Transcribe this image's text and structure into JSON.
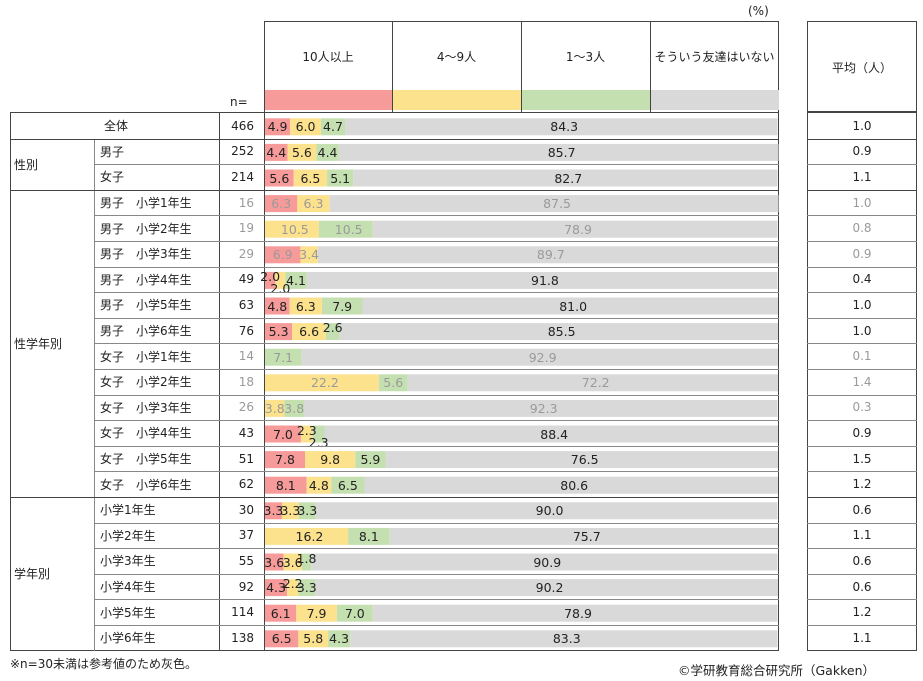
{
  "unit_label": "(%)",
  "n_label": "n=",
  "avg_header": "平均（人）",
  "legend": [
    {
      "label": "10人以上",
      "color": "#f79a9a"
    },
    {
      "label": "4～9人",
      "color": "#fde28e"
    },
    {
      "label": "1～3人",
      "color": "#c5e0b0"
    },
    {
      "label": "そういう友達はいない",
      "color": "#d9d9d9"
    }
  ],
  "groups": [
    {
      "label": "",
      "rows": [
        0
      ]
    },
    {
      "label": "性別",
      "rows": [
        1,
        2
      ]
    },
    {
      "label": "性学年別",
      "rows": [
        3,
        4,
        5,
        6,
        7,
        8,
        9,
        10,
        11,
        12,
        13,
        14
      ]
    },
    {
      "label": "学年別",
      "rows": [
        15,
        16,
        17,
        18,
        19,
        20
      ]
    }
  ],
  "footnote": "※n=30未満は参考値のため灰色。",
  "credit": "©学研教育総合研究所（Gakken）",
  "chart_data": {
    "type": "bar",
    "stacked": true,
    "horizontal": true,
    "xlim": [
      0,
      100
    ],
    "series_names": [
      "10人以上",
      "4～9人",
      "1～3人",
      "そういう友達はいない"
    ],
    "rows": [
      {
        "label": "全体",
        "n": "466",
        "values": [
          4.9,
          6.0,
          4.7,
          84.3
        ],
        "avg": "1.0",
        "ref": false
      },
      {
        "label": "男子",
        "n": "252",
        "values": [
          4.4,
          5.6,
          4.4,
          85.7
        ],
        "avg": "0.9",
        "ref": false
      },
      {
        "label": "女子",
        "n": "214",
        "values": [
          5.6,
          6.5,
          5.1,
          82.7
        ],
        "avg": "1.1",
        "ref": false
      },
      {
        "label": "男子　小学1年生",
        "n": "16",
        "values": [
          6.3,
          6.3,
          0,
          87.5
        ],
        "avg": "1.0",
        "ref": true
      },
      {
        "label": "男子　小学2年生",
        "n": "19",
        "values": [
          0,
          10.5,
          10.5,
          78.9
        ],
        "avg": "0.8",
        "ref": true
      },
      {
        "label": "男子　小学3年生",
        "n": "29",
        "values": [
          6.9,
          3.4,
          0,
          89.7
        ],
        "avg": "0.9",
        "ref": true
      },
      {
        "label": "男子　小学4年生",
        "n": "49",
        "values": [
          2.0,
          2.0,
          4.1,
          91.8
        ],
        "avg": "0.4",
        "ref": false
      },
      {
        "label": "男子　小学5年生",
        "n": "63",
        "values": [
          4.8,
          6.3,
          7.9,
          81.0
        ],
        "avg": "1.0",
        "ref": false
      },
      {
        "label": "男子　小学6年生",
        "n": "76",
        "values": [
          5.3,
          6.6,
          2.6,
          85.5
        ],
        "avg": "1.0",
        "ref": false
      },
      {
        "label": "女子　小学1年生",
        "n": "14",
        "values": [
          0,
          0,
          7.1,
          92.9
        ],
        "avg": "0.1",
        "ref": true
      },
      {
        "label": "女子　小学2年生",
        "n": "18",
        "values": [
          0,
          22.2,
          5.6,
          72.2
        ],
        "avg": "1.4",
        "ref": true
      },
      {
        "label": "女子　小学3年生",
        "n": "26",
        "values": [
          0,
          3.8,
          3.8,
          92.3
        ],
        "avg": "0.3",
        "ref": true
      },
      {
        "label": "女子　小学4年生",
        "n": "43",
        "values": [
          7.0,
          2.3,
          2.3,
          88.4
        ],
        "avg": "0.9",
        "ref": false
      },
      {
        "label": "女子　小学5年生",
        "n": "51",
        "values": [
          7.8,
          9.8,
          5.9,
          76.5
        ],
        "avg": "1.5",
        "ref": false
      },
      {
        "label": "女子　小学6年生",
        "n": "62",
        "values": [
          8.1,
          4.8,
          6.5,
          80.6
        ],
        "avg": "1.2",
        "ref": false
      },
      {
        "label": "小学1年生",
        "n": "30",
        "values": [
          3.3,
          3.3,
          3.3,
          90.0
        ],
        "avg": "0.6",
        "ref": false
      },
      {
        "label": "小学2年生",
        "n": "37",
        "values": [
          0,
          16.2,
          8.1,
          75.7
        ],
        "avg": "1.1",
        "ref": false
      },
      {
        "label": "小学3年生",
        "n": "55",
        "values": [
          3.6,
          3.6,
          1.8,
          90.9
        ],
        "avg": "0.6",
        "ref": false
      },
      {
        "label": "小学4年生",
        "n": "92",
        "values": [
          4.3,
          2.2,
          3.3,
          90.2
        ],
        "avg": "0.6",
        "ref": false
      },
      {
        "label": "小学5年生",
        "n": "114",
        "values": [
          6.1,
          7.9,
          7.0,
          78.9
        ],
        "avg": "1.2",
        "ref": false
      },
      {
        "label": "小学6年生",
        "n": "138",
        "values": [
          6.5,
          5.8,
          4.3,
          83.3
        ],
        "avg": "1.1",
        "ref": false
      }
    ]
  }
}
